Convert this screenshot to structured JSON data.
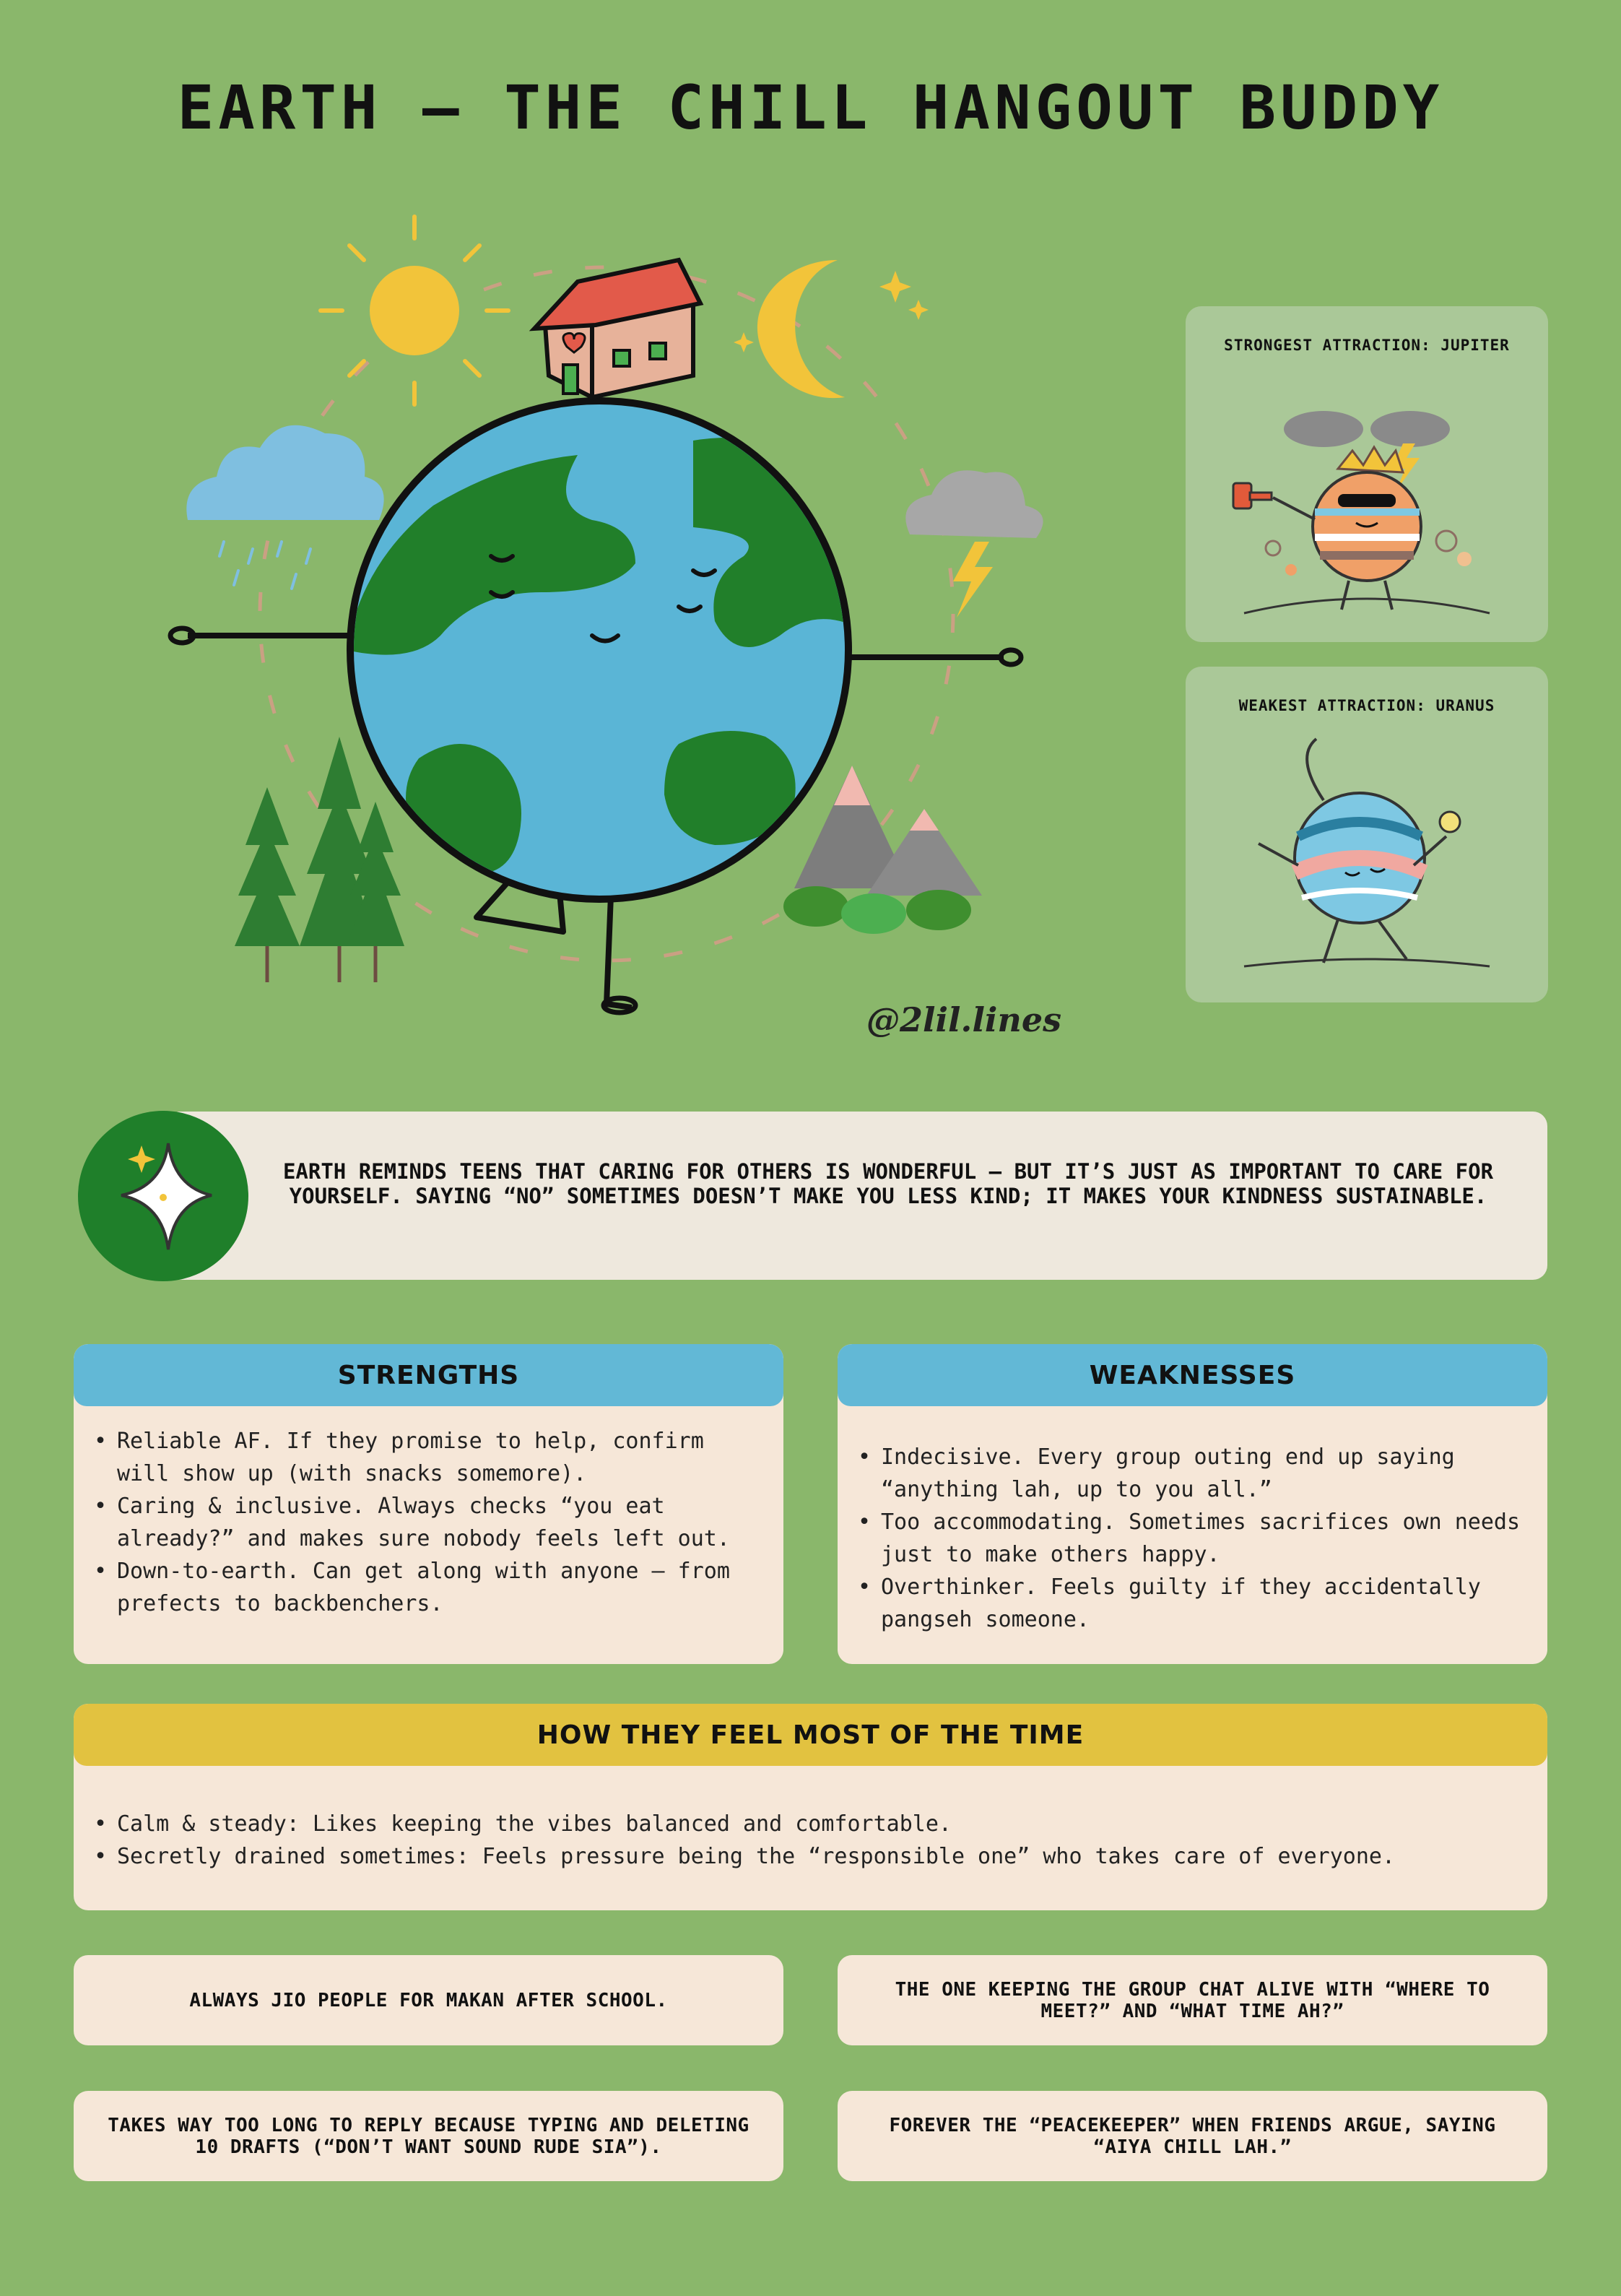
{
  "title": "EARTH – THE CHILL HANGOUT BUDDY",
  "watermark": "@2lil.lines",
  "attractions": {
    "strongest": "STRONGEST ATTRACTION: JUPITER",
    "weakest": "WEAKEST ATTRACTION: URANUS"
  },
  "quote": "EARTH REMINDS TEENS THAT CARING FOR OTHERS IS WONDERFUL – BUT IT’S JUST AS IMPORTANT TO CARE FOR YOURSELF. SAYING “NO” SOMETIMES DOESN’T MAKE YOU LESS KIND; IT MAKES YOUR KINDNESS SUSTAINABLE.",
  "strengths": {
    "heading": "STRENGTHS",
    "items": [
      "Reliable AF. If they promise to help, confirm will show up (with snacks somemore).",
      "Caring & inclusive. Always checks “you eat already?” and makes sure nobody feels left out.",
      "Down-to-earth. Can get along with anyone – from prefects to backbenchers."
    ]
  },
  "weaknesses": {
    "heading": "WEAKNESSES",
    "items": [
      "Indecisive. Every group outing end up saying “anything lah, up to you all.”",
      "Too accommodating. Sometimes sacrifices own needs just to make others happy.",
      "Overthinker. Feels guilty if they accidentally pangseh someone."
    ]
  },
  "feelings": {
    "heading": "HOW THEY FEEL MOST OF THE TIME",
    "items": [
      "Calm & steady: Likes keeping the vibes balanced and comfortable.",
      "Secretly drained sometimes: Feels pressure being the “responsible one” who takes care of everyone."
    ]
  },
  "notes": [
    "ALWAYS JIO PEOPLE FOR MAKAN AFTER SCHOOL.",
    "THE ONE KEEPING THE GROUP CHAT ALIVE WITH “WHERE TO MEET?” AND “WHAT TIME AH?”",
    "TAKES WAY TOO LONG TO REPLY BECAUSE TYPING AND DELETING 10 DRAFTS (“DON’T WANT SOUND RUDE SIA”).",
    "FOREVER THE “PEACEKEEPER” WHEN FRIENDS ARGUE, SAYING “AIYA CHILL LAH.”"
  ],
  "colors": {
    "background": "#8ab76b",
    "card": "#f6e7d8",
    "header_blue": "#62b8d6",
    "header_yellow": "#e2c240",
    "dark_green": "#1f7f2a"
  }
}
